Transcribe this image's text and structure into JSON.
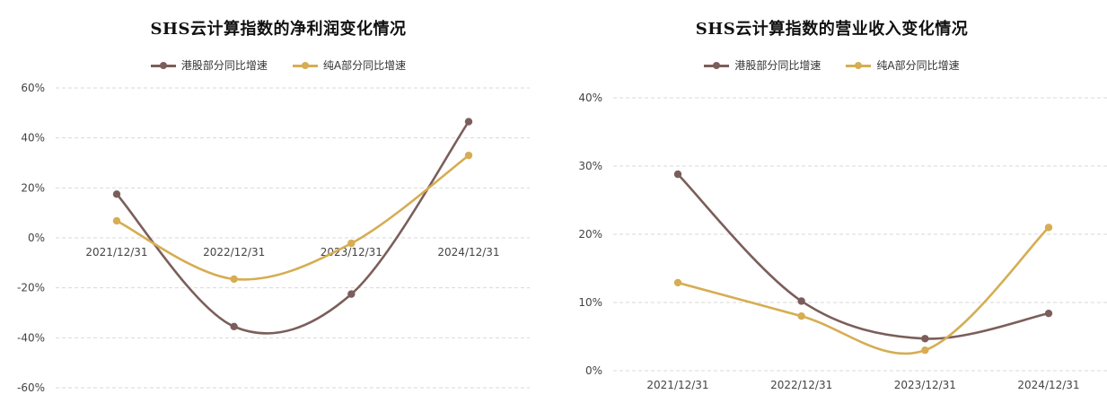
{
  "chart_data": [
    {
      "type": "line",
      "title": "SHS云计算指数的净利润变化情况",
      "categories": [
        "2021/12/31",
        "2022/12/31",
        "2023/12/31",
        "2024/12/31"
      ],
      "series": [
        {
          "name": "港股部分同比增速",
          "color": "#7b5e5a",
          "values": [
            17.5,
            -35.5,
            -22.5,
            46.5
          ]
        },
        {
          "name": "纯A部分同比增速",
          "color": "#d6ad52",
          "values": [
            6.8,
            -16.5,
            -2.2,
            33.0
          ]
        }
      ],
      "ylim": [
        -60,
        60
      ],
      "yticks": [
        60,
        40,
        20,
        0,
        -20,
        -40,
        -60
      ],
      "ytick_labels": [
        "60%",
        "40%",
        "20%",
        "0%",
        "-20%",
        "-40%",
        "-60%"
      ],
      "ylabel": "",
      "xlabel": "",
      "grid": true,
      "legend": "top"
    },
    {
      "type": "line",
      "title": "SHS云计算指数的营业收入变化情况",
      "categories": [
        "2021/12/31",
        "2022/12/31",
        "2023/12/31",
        "2024/12/31"
      ],
      "series": [
        {
          "name": "港股部分同比增速",
          "color": "#7b5e5a",
          "values": [
            28.8,
            10.2,
            4.7,
            8.4
          ]
        },
        {
          "name": "纯A部分同比增速",
          "color": "#d6ad52",
          "values": [
            12.9,
            8.0,
            3.0,
            21.0
          ]
        }
      ],
      "ylim": [
        0,
        40
      ],
      "yticks": [
        40,
        30,
        20,
        10,
        0
      ],
      "ytick_labels": [
        "40%",
        "30%",
        "20%",
        "10%",
        "0%"
      ],
      "ylabel": "",
      "xlabel": "",
      "grid": true,
      "legend": "top"
    }
  ]
}
